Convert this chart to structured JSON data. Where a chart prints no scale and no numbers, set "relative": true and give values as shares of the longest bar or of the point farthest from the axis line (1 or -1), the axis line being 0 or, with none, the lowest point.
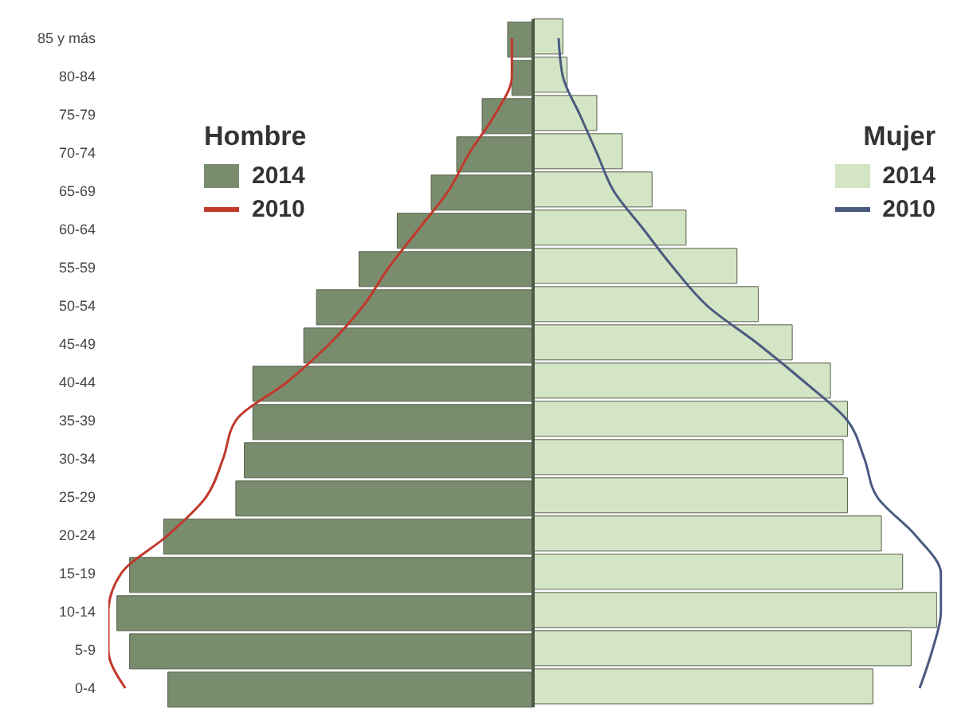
{
  "chart_data": {
    "type": "bar",
    "orientation": "horizontal",
    "relative": true,
    "legend": "top",
    "grid": false,
    "categories": [
      "85 y más",
      "80-84",
      "75-79",
      "70-74",
      "65-69",
      "60-64",
      "55-59",
      "50-54",
      "45-49",
      "40-44",
      "35-39",
      "30-34",
      "25-29",
      "20-24",
      "15-19",
      "10-14",
      "5-9",
      "0-4"
    ],
    "annotations": [
      "Hombre",
      "Mujer"
    ],
    "series": [
      {
        "name": "2014",
        "color": "#7a8c6e",
        "values": [
          -0.06,
          -0.05,
          -0.12,
          -0.18,
          -0.24,
          -0.32,
          -0.41,
          -0.51,
          -0.54,
          -0.66,
          -0.66,
          -0.68,
          -0.7,
          -0.87,
          -0.95,
          -0.98,
          -0.95,
          -0.86
        ]
      },
      {
        "name": "2010",
        "type": "line",
        "color": "#c0392b",
        "values": [
          -0.05,
          -0.05,
          -0.09,
          -0.15,
          -0.2,
          -0.27,
          -0.34,
          -0.4,
          -0.48,
          -0.58,
          -0.7,
          -0.73,
          -0.77,
          -0.86,
          -0.97,
          -1,
          -1,
          -0.96
        ]
      },
      {
        "name": "2014",
        "color": "#d3e5c4",
        "values": [
          0.07,
          0.08,
          0.15,
          0.21,
          0.28,
          0.36,
          0.48,
          0.53,
          0.61,
          0.7,
          0.74,
          0.73,
          0.74,
          0.82,
          0.87,
          0.95,
          0.89,
          0.8
        ]
      },
      {
        "name": "2010",
        "type": "line",
        "color": "#4a5a80",
        "values": [
          0.06,
          0.07,
          0.11,
          0.15,
          0.19,
          0.26,
          0.33,
          0.41,
          0.53,
          0.64,
          0.74,
          0.78,
          0.81,
          0.9,
          0.96,
          0.96,
          0.94,
          0.91
        ]
      }
    ]
  }
}
